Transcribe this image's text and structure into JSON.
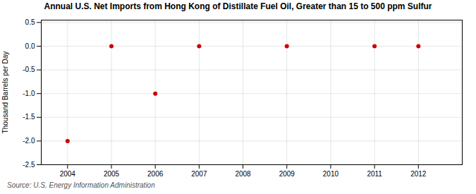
{
  "chart_data": {
    "type": "scatter",
    "title": "Annual U.S. Net Imports from Hong Kong of Distillate Fuel Oil, Greater than 15 to 500 ppm Sulfur",
    "ylabel": "Thousand Barrels per Day",
    "source": "Source: U.S. Energy Information Administration",
    "x": [
      2004,
      2005,
      2006,
      2007,
      2009,
      2011,
      2012
    ],
    "values": [
      -2.0,
      0.0,
      -1.0,
      0.0,
      0.0,
      0.0,
      0.0
    ],
    "color": "#cc0000",
    "xlim": [
      2003.4,
      2013.0
    ],
    "ylim": [
      -2.5,
      0.55
    ],
    "xticks": [
      2004,
      2005,
      2006,
      2007,
      2008,
      2009,
      2010,
      2011,
      2012
    ],
    "yticks": [
      0.5,
      {
        "value": 0.0,
        "label": "0.0"
      },
      -0.5,
      {
        "value": -1.0,
        "label": "-1.0"
      },
      -1.5,
      {
        "value": -2.0,
        "label": "-2.0"
      },
      -2.5
    ],
    "grid": true
  }
}
